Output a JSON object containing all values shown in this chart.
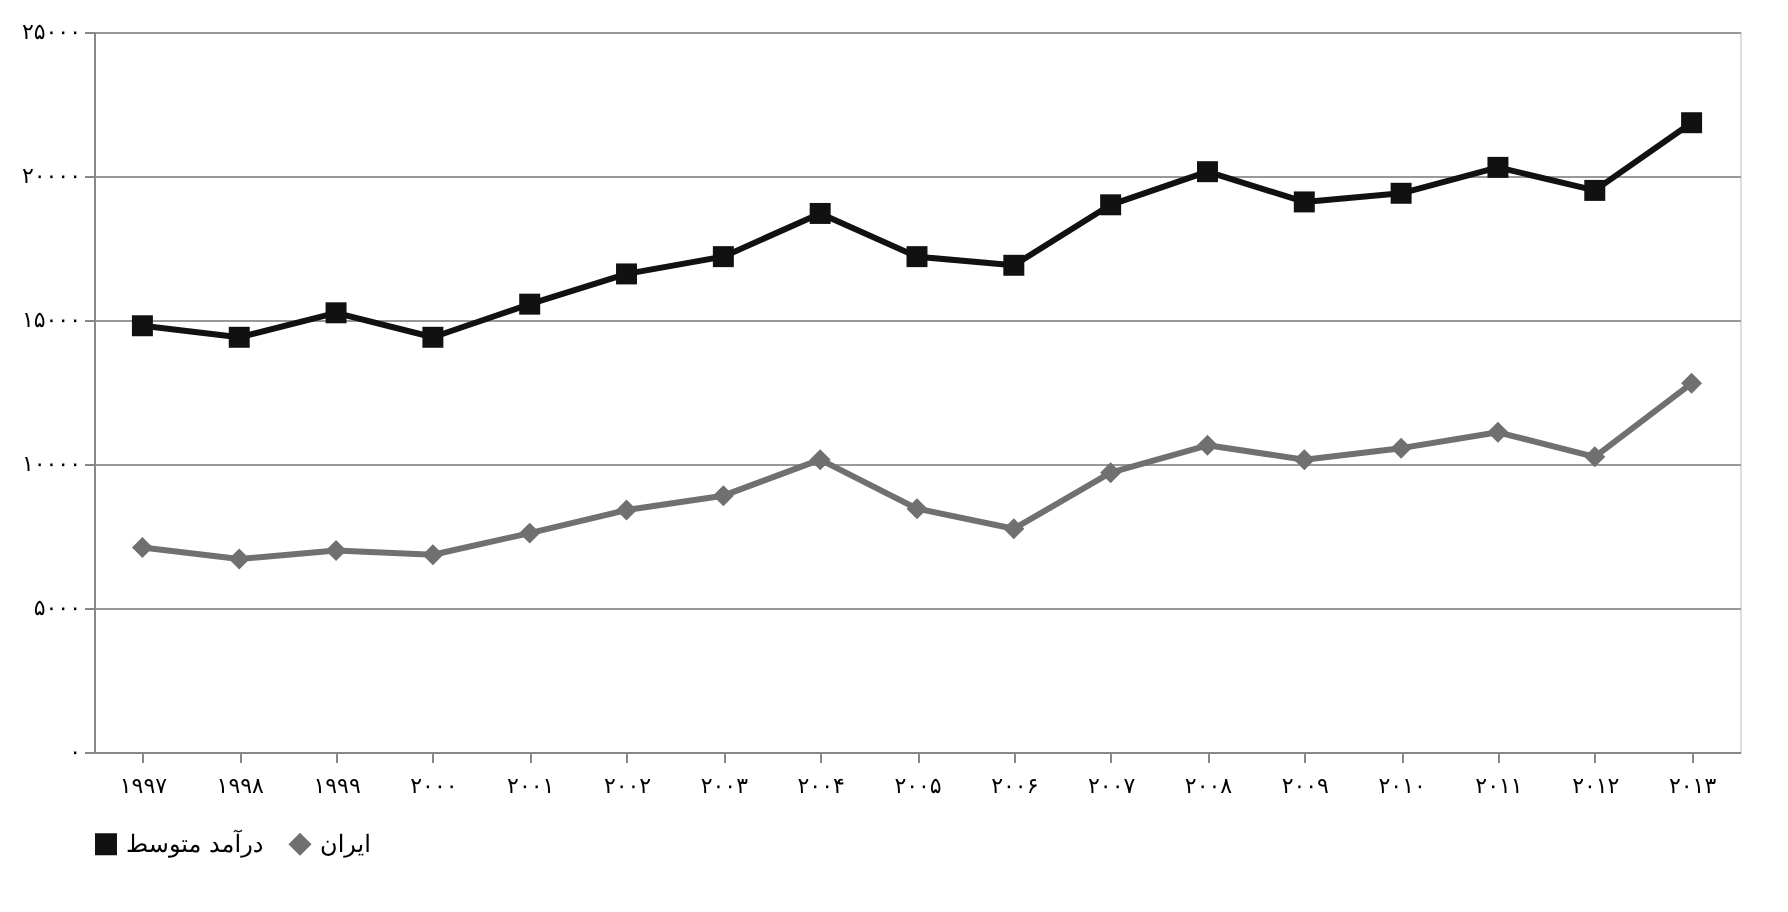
{
  "chart_data": {
    "type": "line",
    "categories": [
      "۱۹۹۷",
      "۱۹۹۸",
      "۱۹۹۹",
      "۲۰۰۰",
      "۲۰۰۱",
      "۲۰۰۲",
      "۲۰۰۳",
      "۲۰۰۴",
      "۲۰۰۵",
      "۲۰۰۶",
      "۲۰۰۷",
      "۲۰۰۸",
      "۲۰۰۹",
      "۲۰۱۰",
      "۲۰۱۱",
      "۲۰۱۲",
      "۲۰۱۳"
    ],
    "series": [
      {
        "name": "درآمد متوسط",
        "color": "#111111",
        "marker": "square",
        "values": [
          14800,
          14400,
          15250,
          14400,
          15550,
          16600,
          17200,
          18700,
          17200,
          16900,
          19000,
          20150,
          19100,
          19400,
          20300,
          19500,
          21850
        ]
      },
      {
        "name": "ایران",
        "color": "#707070",
        "marker": "diamond",
        "values": [
          7100,
          6700,
          7000,
          6850,
          7600,
          8400,
          8900,
          10150,
          8450,
          7750,
          9700,
          10650,
          10150,
          10550,
          11100,
          10250,
          12800
        ]
      }
    ],
    "ylim": [
      0,
      25000
    ],
    "yticks": [
      {
        "value": 0,
        "label": "۰"
      },
      {
        "value": 5000,
        "label": "۵۰۰۰"
      },
      {
        "value": 10000,
        "label": "۱۰۰۰۰"
      },
      {
        "value": 15000,
        "label": "۱۵۰۰۰"
      },
      {
        "value": 20000,
        "label": "۲۰۰۰۰"
      },
      {
        "value": 25000,
        "label": "۲۵۰۰۰"
      }
    ],
    "grid": "y",
    "legend": "bottom",
    "line_style": "solid"
  }
}
